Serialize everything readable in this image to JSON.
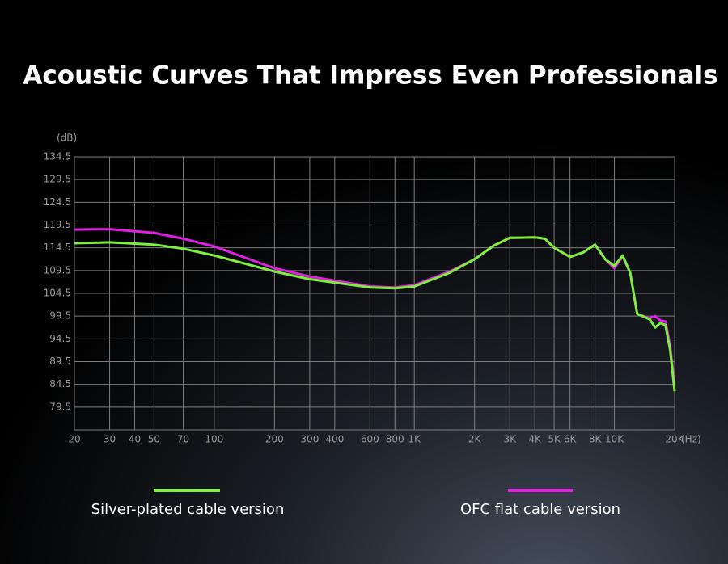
{
  "chart_data": {
    "type": "line",
    "title": "Acoustic Curves That Impress Even Professionals",
    "y_label": "(dB)",
    "x_label": "(Hz)",
    "x": [
      20,
      30,
      50,
      70,
      100,
      200,
      300,
      600,
      800,
      1000,
      1500,
      2000,
      2500,
      3000,
      4000,
      4500,
      5000,
      6000,
      7000,
      8000,
      9000,
      10000,
      11000,
      12000,
      13000,
      15000,
      16000,
      17000,
      18000,
      19000,
      20000
    ],
    "series": [
      {
        "name": "OFC flat cable version",
        "color": "#e020e0",
        "values": [
          118.5,
          118.6,
          117.8,
          116.5,
          114.8,
          110,
          108.2,
          106,
          105.8,
          106.3,
          109.3,
          112,
          115,
          116.7,
          116.8,
          116.5,
          114.5,
          112.5,
          113.5,
          115.2,
          112,
          110,
          112.6,
          109,
          100,
          99,
          99.5,
          98.5,
          98.3,
          93,
          84
        ]
      },
      {
        "name": "Silver-plated cable version",
        "color": "#7cf03c",
        "values": [
          115.5,
          115.7,
          115.2,
          114.3,
          112.8,
          109.3,
          107.6,
          105.8,
          105.6,
          106,
          109,
          112,
          115,
          116.7,
          116.8,
          116.5,
          114.5,
          112.5,
          113.5,
          115.2,
          112,
          110.5,
          112.8,
          109,
          100,
          98.8,
          97,
          98,
          97.5,
          92,
          83
        ]
      }
    ],
    "xlim": [
      20,
      20000
    ],
    "xscale": "log",
    "xticks": [
      20,
      30,
      40,
      50,
      70,
      100,
      200,
      300,
      400,
      600,
      800,
      {
        "value": 1000,
        "label": "1K"
      },
      {
        "value": 2000,
        "label": "2K"
      },
      {
        "value": 3000,
        "label": "3K"
      },
      {
        "value": 4000,
        "label": "4K"
      },
      {
        "value": 5000,
        "label": "5K"
      },
      {
        "value": 6000,
        "label": "6K"
      },
      {
        "value": 8000,
        "label": "8K"
      },
      {
        "value": 10000,
        "label": "10K"
      },
      {
        "value": 20000,
        "label": "20K"
      }
    ],
    "ylim": [
      74.5,
      134.5
    ],
    "yticks": [
      79.5,
      84.5,
      89.5,
      94.5,
      99.5,
      104.5,
      109.5,
      114.5,
      119.5,
      124.5,
      129.5,
      134.5
    ],
    "grid": true
  }
}
